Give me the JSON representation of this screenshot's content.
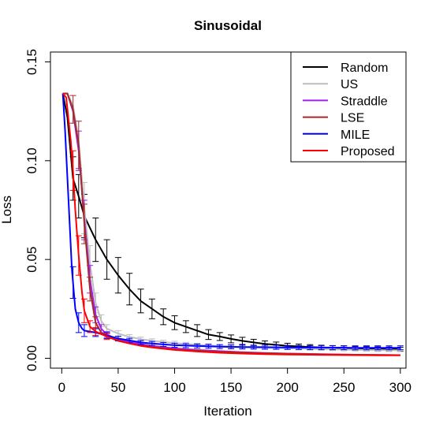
{
  "chart_data": {
    "type": "line",
    "title": "Sinusoidal",
    "xlabel": "Iteration",
    "ylabel": "Loss",
    "xlim": [
      -10,
      305
    ],
    "ylim": [
      -0.005,
      0.155
    ],
    "x_ticks": [
      0,
      50,
      100,
      150,
      200,
      250,
      300
    ],
    "x_tick_labels": [
      "0",
      "50",
      "100",
      "150",
      "200",
      "250",
      "300"
    ],
    "y_ticks": [
      0.0,
      0.05,
      0.1,
      0.15
    ],
    "y_tick_labels": [
      "0.00",
      "0.05",
      "0.10",
      "0.15"
    ],
    "grid": false,
    "legend_position": "top-right",
    "series": [
      {
        "name": "Random",
        "color": "#000000",
        "points": [
          [
            1,
            0.134
          ],
          [
            5,
            0.122
          ],
          [
            10,
            0.091
          ],
          [
            15,
            0.082
          ],
          [
            20,
            0.072
          ],
          [
            25,
            0.066
          ],
          [
            30,
            0.06
          ],
          [
            40,
            0.05
          ],
          [
            50,
            0.042
          ],
          [
            60,
            0.035
          ],
          [
            70,
            0.029
          ],
          [
            80,
            0.025
          ],
          [
            90,
            0.021
          ],
          [
            100,
            0.018
          ],
          [
            110,
            0.016
          ],
          [
            120,
            0.014
          ],
          [
            130,
            0.012
          ],
          [
            140,
            0.011
          ],
          [
            150,
            0.0098
          ],
          [
            160,
            0.0088
          ],
          [
            170,
            0.008
          ],
          [
            180,
            0.0073
          ],
          [
            190,
            0.0068
          ],
          [
            200,
            0.0063
          ],
          [
            220,
            0.0057
          ],
          [
            240,
            0.0053
          ],
          [
            260,
            0.005
          ],
          [
            280,
            0.0048
          ],
          [
            300,
            0.0046
          ]
        ],
        "error_bars": [
          [
            10,
            0.011
          ],
          [
            15,
            0.011
          ],
          [
            20,
            0.011
          ],
          [
            30,
            0.011
          ],
          [
            40,
            0.01
          ],
          [
            50,
            0.009
          ],
          [
            60,
            0.008
          ],
          [
            70,
            0.006
          ],
          [
            80,
            0.005
          ],
          [
            90,
            0.004
          ],
          [
            100,
            0.0035
          ],
          [
            110,
            0.003
          ],
          [
            120,
            0.003
          ],
          [
            130,
            0.0025
          ],
          [
            140,
            0.002
          ],
          [
            150,
            0.002
          ],
          [
            160,
            0.0018
          ],
          [
            170,
            0.0016
          ],
          [
            180,
            0.0015
          ],
          [
            190,
            0.0014
          ],
          [
            200,
            0.0013
          ],
          [
            210,
            0.0012
          ],
          [
            220,
            0.0012
          ],
          [
            230,
            0.0011
          ],
          [
            240,
            0.0011
          ],
          [
            250,
            0.0011
          ],
          [
            260,
            0.001
          ],
          [
            270,
            0.001
          ],
          [
            280,
            0.001
          ],
          [
            290,
            0.001
          ],
          [
            300,
            0.001
          ]
        ]
      },
      {
        "name": "US",
        "color": "#bebebe",
        "points": [
          [
            1,
            0.134
          ],
          [
            5,
            0.134
          ],
          [
            10,
            0.128
          ],
          [
            15,
            0.11
          ],
          [
            20,
            0.076
          ],
          [
            25,
            0.048
          ],
          [
            30,
            0.028
          ],
          [
            35,
            0.019
          ],
          [
            40,
            0.015
          ],
          [
            50,
            0.0125
          ],
          [
            60,
            0.0108
          ],
          [
            70,
            0.0097
          ],
          [
            80,
            0.0088
          ],
          [
            90,
            0.0082
          ],
          [
            100,
            0.0077
          ],
          [
            120,
            0.0068
          ],
          [
            140,
            0.0062
          ],
          [
            160,
            0.0057
          ],
          [
            180,
            0.0053
          ],
          [
            200,
            0.005
          ],
          [
            220,
            0.0047
          ],
          [
            240,
            0.0045
          ],
          [
            260,
            0.0043
          ],
          [
            280,
            0.0041
          ],
          [
            300,
            0.004
          ]
        ],
        "error_bars": [
          [
            20,
            0.013
          ],
          [
            25,
            0.009
          ],
          [
            30,
            0.005
          ],
          [
            35,
            0.003
          ],
          [
            40,
            0.002
          ],
          [
            50,
            0.0015
          ],
          [
            60,
            0.0012
          ],
          [
            70,
            0.001
          ],
          [
            80,
            0.001
          ],
          [
            90,
            0.0009
          ],
          [
            100,
            0.0009
          ],
          [
            110,
            0.0008
          ],
          [
            120,
            0.0008
          ],
          [
            130,
            0.0008
          ],
          [
            140,
            0.0007
          ],
          [
            150,
            0.0007
          ],
          [
            160,
            0.0007
          ],
          [
            170,
            0.0006
          ],
          [
            180,
            0.0006
          ],
          [
            190,
            0.0006
          ],
          [
            200,
            0.0006
          ],
          [
            210,
            0.0006
          ],
          [
            220,
            0.0006
          ],
          [
            230,
            0.0006
          ],
          [
            240,
            0.0006
          ],
          [
            250,
            0.0006
          ],
          [
            260,
            0.0006
          ],
          [
            270,
            0.0006
          ],
          [
            280,
            0.0006
          ],
          [
            290,
            0.0006
          ],
          [
            300,
            0.0006
          ]
        ]
      },
      {
        "name": "Straddle",
        "color": "#a020f0",
        "points": [
          [
            1,
            0.134
          ],
          [
            5,
            0.134
          ],
          [
            10,
            0.125
          ],
          [
            15,
            0.105
          ],
          [
            20,
            0.07
          ],
          [
            25,
            0.04
          ],
          [
            30,
            0.022
          ],
          [
            35,
            0.015
          ],
          [
            40,
            0.012
          ],
          [
            50,
            0.0095
          ],
          [
            60,
            0.0082
          ],
          [
            70,
            0.0072
          ],
          [
            80,
            0.0063
          ],
          [
            90,
            0.0056
          ],
          [
            100,
            0.005
          ],
          [
            120,
            0.0042
          ],
          [
            140,
            0.0036
          ],
          [
            160,
            0.0031
          ],
          [
            180,
            0.0027
          ],
          [
            200,
            0.0024
          ],
          [
            220,
            0.0022
          ],
          [
            240,
            0.002
          ],
          [
            260,
            0.0018
          ],
          [
            280,
            0.0017
          ],
          [
            300,
            0.0016
          ]
        ],
        "error_bars": [
          [
            15,
            0.01
          ],
          [
            20,
            0.01
          ],
          [
            25,
            0.007
          ],
          [
            30,
            0.004
          ],
          [
            35,
            0.002
          ],
          [
            40,
            0.0015
          ]
        ]
      },
      {
        "name": "LSE",
        "color": "#a52a2a",
        "points": [
          [
            1,
            0.134
          ],
          [
            5,
            0.134
          ],
          [
            10,
            0.126
          ],
          [
            15,
            0.108
          ],
          [
            20,
            0.068
          ],
          [
            25,
            0.035
          ],
          [
            30,
            0.018
          ],
          [
            35,
            0.013
          ],
          [
            40,
            0.011
          ],
          [
            50,
            0.0088
          ],
          [
            60,
            0.0075
          ],
          [
            70,
            0.0065
          ],
          [
            80,
            0.0057
          ],
          [
            90,
            0.005
          ],
          [
            100,
            0.0045
          ],
          [
            120,
            0.0038
          ],
          [
            140,
            0.0033
          ],
          [
            160,
            0.0029
          ],
          [
            180,
            0.0026
          ],
          [
            200,
            0.0023
          ],
          [
            220,
            0.0021
          ],
          [
            240,
            0.0019
          ],
          [
            260,
            0.0018
          ],
          [
            280,
            0.0017
          ],
          [
            300,
            0.0016
          ]
        ],
        "error_bars": [
          [
            10,
            0.007
          ],
          [
            15,
            0.012
          ],
          [
            20,
            0.01
          ],
          [
            25,
            0.006
          ],
          [
            30,
            0.003
          ]
        ]
      },
      {
        "name": "MILE",
        "color": "#0000ff",
        "points": [
          [
            1,
            0.134
          ],
          [
            3,
            0.115
          ],
          [
            6,
            0.08
          ],
          [
            9,
            0.045
          ],
          [
            12,
            0.025
          ],
          [
            15,
            0.018
          ],
          [
            18,
            0.015
          ],
          [
            20,
            0.014
          ],
          [
            25,
            0.0135
          ],
          [
            30,
            0.013
          ],
          [
            40,
            0.0115
          ],
          [
            50,
            0.01
          ],
          [
            60,
            0.009
          ],
          [
            70,
            0.008
          ],
          [
            80,
            0.0075
          ],
          [
            90,
            0.007
          ],
          [
            100,
            0.0066
          ],
          [
            120,
            0.0062
          ],
          [
            140,
            0.0059
          ],
          [
            160,
            0.0057
          ],
          [
            180,
            0.0056
          ],
          [
            200,
            0.0055
          ],
          [
            220,
            0.0054
          ],
          [
            240,
            0.0054
          ],
          [
            260,
            0.0053
          ],
          [
            280,
            0.0053
          ],
          [
            300,
            0.0053
          ]
        ],
        "error_bars": [
          [
            10,
            0.008
          ],
          [
            15,
            0.005
          ],
          [
            20,
            0.003
          ],
          [
            30,
            0.002
          ],
          [
            40,
            0.0015
          ],
          [
            50,
            0.0012
          ],
          [
            60,
            0.0011
          ],
          [
            70,
            0.001
          ],
          [
            80,
            0.001
          ],
          [
            90,
            0.001
          ],
          [
            100,
            0.001
          ],
          [
            110,
            0.001
          ],
          [
            120,
            0.001
          ],
          [
            130,
            0.001
          ],
          [
            140,
            0.001
          ],
          [
            150,
            0.001
          ],
          [
            160,
            0.001
          ],
          [
            170,
            0.001
          ],
          [
            180,
            0.001
          ],
          [
            190,
            0.001
          ],
          [
            200,
            0.001
          ],
          [
            210,
            0.001
          ],
          [
            220,
            0.001
          ],
          [
            230,
            0.001
          ],
          [
            240,
            0.001
          ],
          [
            250,
            0.001
          ],
          [
            260,
            0.001
          ],
          [
            270,
            0.001
          ],
          [
            280,
            0.001
          ],
          [
            290,
            0.001
          ],
          [
            300,
            0.001
          ]
        ]
      },
      {
        "name": "Proposed",
        "color": "#ff0000",
        "points": [
          [
            1,
            0.134
          ],
          [
            4,
            0.132
          ],
          [
            8,
            0.11
          ],
          [
            10,
            0.095
          ],
          [
            12,
            0.075
          ],
          [
            15,
            0.052
          ],
          [
            18,
            0.033
          ],
          [
            20,
            0.024
          ],
          [
            25,
            0.016
          ],
          [
            30,
            0.0135
          ],
          [
            40,
            0.011
          ],
          [
            50,
            0.009
          ],
          [
            60,
            0.0075
          ],
          [
            70,
            0.0063
          ],
          [
            80,
            0.0055
          ],
          [
            90,
            0.0048
          ],
          [
            100,
            0.0042
          ],
          [
            120,
            0.0034
          ],
          [
            140,
            0.0028
          ],
          [
            160,
            0.0024
          ],
          [
            180,
            0.0021
          ],
          [
            200,
            0.0019
          ],
          [
            220,
            0.0018
          ],
          [
            240,
            0.0017
          ],
          [
            260,
            0.0016
          ],
          [
            280,
            0.0015
          ],
          [
            300,
            0.0015
          ]
        ],
        "error_bars": [
          [
            10,
            0.01
          ],
          [
            15,
            0.01
          ],
          [
            20,
            0.006
          ],
          [
            25,
            0.003
          ],
          [
            30,
            0.002
          ],
          [
            40,
            0.0015
          ]
        ]
      }
    ]
  }
}
